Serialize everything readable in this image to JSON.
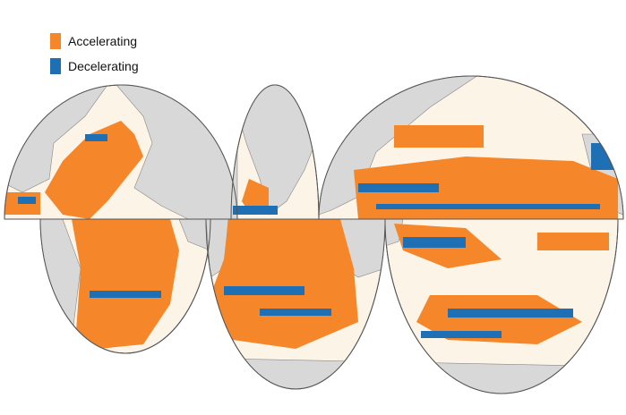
{
  "legend": {
    "items": [
      {
        "label": "Accelerating",
        "color": "#f5862a"
      },
      {
        "label": "Decelerating",
        "color": "#1f6fb5"
      }
    ]
  }
}
